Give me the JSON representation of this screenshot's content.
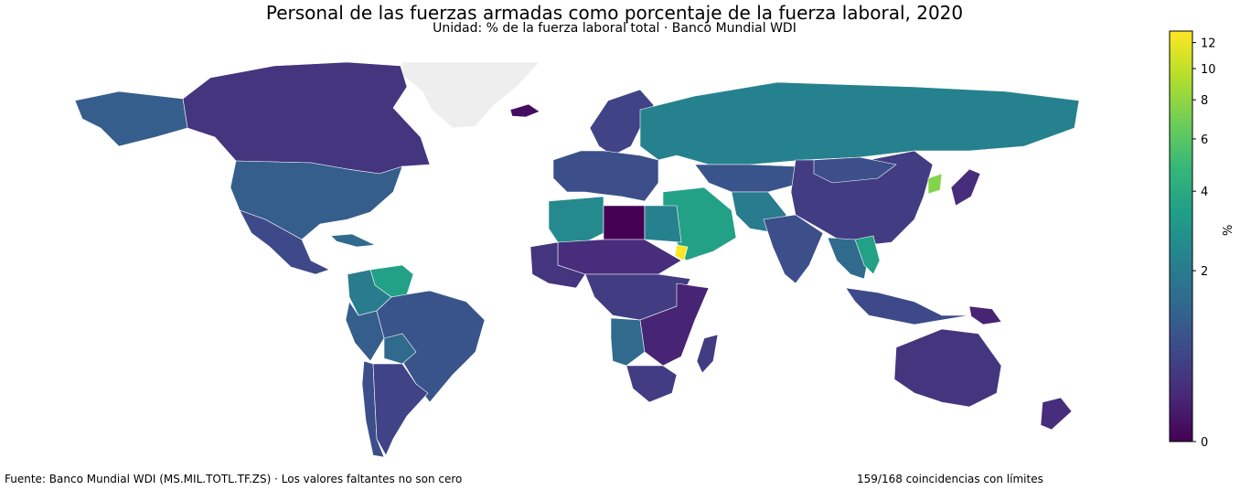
{
  "title": "Personal de las fuerzas armadas como porcentaje de la fuerza laboral, 2020",
  "subtitle": "Unidad: % de la fuerza laboral total · Banco Mundial WDI",
  "footer": {
    "source": "Fuente: Banco Mundial WDI (MS.MIL.TOTL.TF.ZS) · Los valores faltantes no son cero",
    "matches": "159/168 coincidencias con límites"
  },
  "colorbar": {
    "label": "%",
    "scale": "log(1+x)",
    "min": 0,
    "max": 13,
    "ticks": [
      {
        "value": 0,
        "label": "0"
      },
      {
        "value": 2,
        "label": "2"
      },
      {
        "value": 4,
        "label": "4"
      },
      {
        "value": 6,
        "label": "6"
      },
      {
        "value": 8,
        "label": "8"
      },
      {
        "value": 10,
        "label": "10"
      },
      {
        "value": 12,
        "label": "12"
      }
    ],
    "colormap": [
      "#440154",
      "#482878",
      "#3e4989",
      "#31688e",
      "#26828e",
      "#1f9e89",
      "#35b779",
      "#6ece58",
      "#b5de2b",
      "#fde725"
    ]
  },
  "missing_color": "#eeeeee",
  "regions": [
    {
      "name": "Groenlandia",
      "value": null
    },
    {
      "name": "Canadá",
      "value": 0.5
    },
    {
      "name": "Alaska",
      "value": 1.2
    },
    {
      "name": "Estados Unidos",
      "value": 1.2
    },
    {
      "name": "México",
      "value": 0.8
    },
    {
      "name": "Cuba",
      "value": 1.5
    },
    {
      "name": "Venezuela",
      "value": 3.5
    },
    {
      "name": "Colombia",
      "value": 2.0
    },
    {
      "name": "Perú",
      "value": 1.2
    },
    {
      "name": "Brasil",
      "value": 1.0
    },
    {
      "name": "Bolivia",
      "value": 1.5
    },
    {
      "name": "Chile",
      "value": 0.9
    },
    {
      "name": "Argentina",
      "value": 0.7
    },
    {
      "name": "Islandia",
      "value": 0.1
    },
    {
      "name": "Escandinavia",
      "value": 0.7
    },
    {
      "name": "Europa occidental",
      "value": 0.9
    },
    {
      "name": "Rusia",
      "value": 2.2
    },
    {
      "name": "Kazajistán",
      "value": 1.0
    },
    {
      "name": "Oriente Medio",
      "value": 3.5
    },
    {
      "name": "Irán",
      "value": 2.0
    },
    {
      "name": "India",
      "value": 0.9
    },
    {
      "name": "China",
      "value": 0.6
    },
    {
      "name": "Mongolia",
      "value": 0.9
    },
    {
      "name": "Corea del Norte",
      "value": 7.5
    },
    {
      "name": "Japón",
      "value": 0.4
    },
    {
      "name": "Sudeste asiático",
      "value": 1.5
    },
    {
      "name": "Vietnam",
      "value": 3.5
    },
    {
      "name": "Indonesia",
      "value": 0.8
    },
    {
      "name": "Papúa Nueva Guinea",
      "value": 0.3
    },
    {
      "name": "Australia",
      "value": 0.5
    },
    {
      "name": "Nueva Zelanda",
      "value": 0.4
    },
    {
      "name": "Argelia",
      "value": 2.5
    },
    {
      "name": "Libia",
      "value": 0.0
    },
    {
      "name": "Egipto",
      "value": 2.2
    },
    {
      "name": "Eritrea",
      "value": 13.0
    },
    {
      "name": "Sahel",
      "value": 0.4
    },
    {
      "name": "África occidental",
      "value": 0.5
    },
    {
      "name": "África central",
      "value": 0.6
    },
    {
      "name": "Angola",
      "value": 1.5
    },
    {
      "name": "África oriental",
      "value": 0.3
    },
    {
      "name": "Sudáfrica",
      "value": 0.6
    },
    {
      "name": "Madagascar",
      "value": 0.6
    }
  ]
}
